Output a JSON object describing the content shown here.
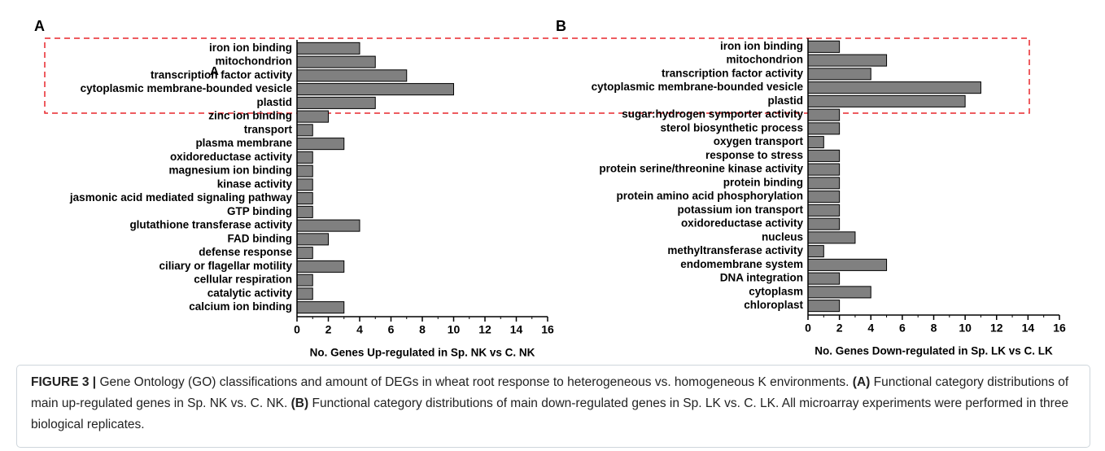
{
  "chart_data": [
    {
      "type": "barh",
      "title": "A",
      "annotation": "A",
      "xlabel": "No. Genes Up-regulated in Sp. NK vs C. NK",
      "categories": [
        "iron ion binding",
        "mitochondrion",
        "transcription factor activity",
        "cytoplasmic membrane-bounded vesicle",
        "plastid",
        "zinc ion binding",
        "transport",
        "plasma membrane",
        "oxidoreductase activity",
        "magnesium ion binding",
        "kinase activity",
        "jasmonic acid mediated signaling pathway",
        "GTP binding",
        "glutathione transferase activity",
        "FAD binding",
        "defense response",
        "ciliary or flagellar motility",
        "cellular respiration",
        "catalytic activity",
        "calcium ion binding"
      ],
      "values": [
        4,
        5,
        7,
        10,
        5,
        2,
        1,
        3,
        1,
        1,
        1,
        1,
        1,
        4,
        2,
        1,
        3,
        1,
        1,
        3
      ],
      "color": "#808080",
      "xlim": [
        0,
        16
      ],
      "xticks": [
        0,
        2,
        4,
        6,
        8,
        10,
        12,
        14,
        16
      ]
    },
    {
      "type": "barh",
      "title": "B",
      "xlabel": "No. Genes Down-regulated in Sp. LK vs C. LK",
      "categories": [
        "iron ion binding",
        "mitochondrion",
        "transcription factor activity",
        "cytoplasmic membrane-bounded vesicle",
        "plastid",
        "sugar:hydrogen symporter activity",
        "sterol biosynthetic process",
        "oxygen transport",
        "response to stress",
        "protein serine/threonine kinase activity",
        "protein binding",
        "protein amino acid phosphorylation",
        "potassium ion transport",
        "oxidoreductase activity",
        "nucleus",
        "methyltransferase activity",
        "endomembrane system",
        "DNA integration",
        "cytoplasm",
        "chloroplast"
      ],
      "values": [
        2,
        5,
        4,
        11,
        10,
        2,
        2,
        1,
        2,
        2,
        2,
        2,
        2,
        2,
        3,
        1,
        5,
        2,
        4,
        2
      ],
      "color": "#808080",
      "xlim": [
        0,
        16
      ],
      "xticks": [
        0,
        2,
        4,
        6,
        8,
        10,
        12,
        14,
        16
      ]
    }
  ],
  "caption": [
    "FIGURE 3 |",
    " Gene Ontology (GO) classifications and amount of DEGs in wheat root response to heterogeneous vs. homogeneous K environments. ",
    "(A)",
    " Functional category distributions of main up-regulated genes in Sp. NK vs. C. NK. ",
    "(B)",
    " Functional category distributions of main down-regulated genes in Sp. LK vs. C. LK. All microarray experiments were performed in three biological replicates."
  ]
}
